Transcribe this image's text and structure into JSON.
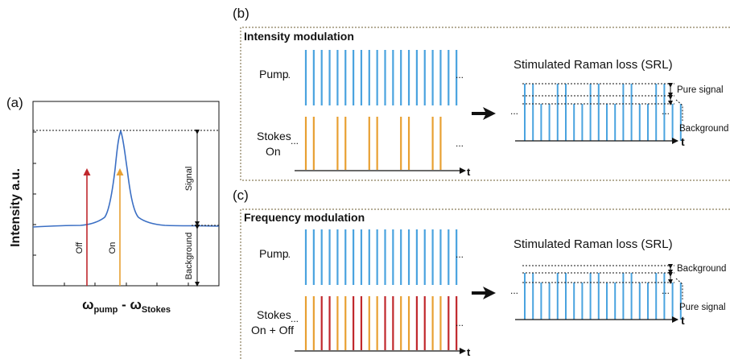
{
  "colors": {
    "pump": "#4aa3df",
    "stokes_on": "#e8a032",
    "stokes_off": "#c0282d",
    "curve": "#3b6fc4",
    "text": "#111111",
    "dash": "#222222"
  },
  "panel_a": {
    "label": "(a)",
    "ylabel": "Intensity a.u.",
    "xlabel_main": "ω",
    "xlabel_sub1": "pump",
    "xlabel_mid": " - ω",
    "xlabel_sub2": "Stokes",
    "off_label": "Off",
    "on_label": "On",
    "signal_label": "Signal",
    "background_label": "Background"
  },
  "panel_b": {
    "label": "(b)",
    "title": "Intensity modulation",
    "pump_label": "Pump",
    "stokes_label_1": "Stokes",
    "stokes_label_2": "On",
    "dots": "...",
    "time_label": "t",
    "srl_title": "Stimulated Raman loss (SRL)",
    "pure_signal_label": "Pure signal",
    "background_label": "Background",
    "stokes_pattern": [
      "on",
      "on",
      "off",
      "off",
      "on",
      "on",
      "off",
      "off",
      "on",
      "on",
      "off",
      "off",
      "on",
      "on",
      "off",
      "off",
      "on",
      "on",
      "off",
      "off"
    ]
  },
  "panel_c": {
    "label": "(c)",
    "title": "Frequency modulation",
    "pump_label": "Pump",
    "stokes_label_1": "Stokes",
    "stokes_label_2": "On + Off",
    "dots": "...",
    "time_label": "t",
    "srl_title": "Stimulated Raman loss (SRL)",
    "background_label": "Background",
    "pure_signal_label": "Pure signal",
    "stokes_pattern": [
      "on",
      "on",
      "off",
      "off",
      "on",
      "on",
      "off",
      "off",
      "on",
      "on",
      "off",
      "off",
      "on",
      "on",
      "off",
      "off",
      "on",
      "on",
      "off",
      "off"
    ]
  }
}
